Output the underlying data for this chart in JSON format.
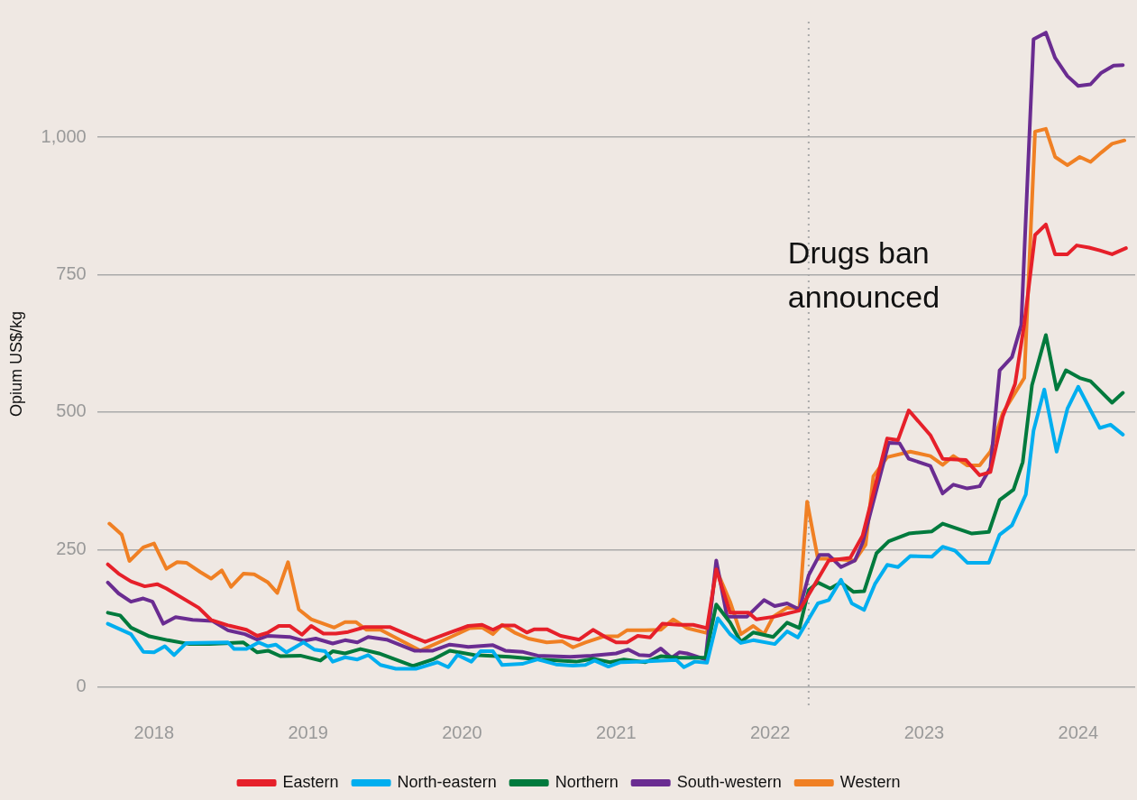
{
  "chart_data": {
    "type": "line",
    "ylabel": "Opium US$/kg",
    "xlim": [
      2017.63,
      2024.37
    ],
    "xticks": [
      2018,
      2019,
      2020,
      2021,
      2022,
      2023,
      2024
    ],
    "ylim": [
      -35,
      1210
    ],
    "yticks": [
      0,
      250,
      500,
      750,
      {
        "value": 1000,
        "label": "1,000"
      }
    ],
    "grid": "y",
    "legend": "bottom",
    "ref_lines": [
      {
        "axis": "x",
        "value": 2022.25,
        "label": "Drugs ban announced",
        "color": "#aaaaaa",
        "line_style": "dotted"
      }
    ],
    "series": [
      {
        "name": "Eastern",
        "color": "#e6202a",
        "x": [
          2017.7,
          2017.77,
          2017.85,
          2017.94,
          2018.02,
          2018.08,
          2018.29,
          2018.37,
          2018.48,
          2018.6,
          2018.67,
          2018.74,
          2018.81,
          2018.88,
          2018.96,
          2019.02,
          2019.1,
          2019.18,
          2019.26,
          2019.37,
          2019.53,
          2019.68,
          2019.76,
          2019.92,
          2020.04,
          2020.13,
          2020.2,
          2020.26,
          2020.34,
          2020.42,
          2020.47,
          2020.55,
          2020.64,
          2020.76,
          2020.85,
          2020.93,
          2021.0,
          2021.07,
          2021.14,
          2021.22,
          2021.3,
          2021.41,
          2021.5,
          2021.59,
          2021.65,
          2021.74,
          2021.86,
          2021.91,
          2022.03,
          2022.19,
          2022.38,
          2022.52,
          2022.6,
          2022.76,
          2022.83,
          2022.9,
          2023.04,
          2023.12,
          2023.27,
          2023.36,
          2023.43,
          2023.51,
          2023.59,
          2023.65,
          2023.72,
          2023.79,
          2023.85,
          2023.93,
          2023.99,
          2024.07,
          2024.14,
          2024.22,
          2024.31
        ],
        "values": [
          223,
          206,
          192,
          183,
          187,
          179,
          144,
          122,
          112,
          104,
          93,
          99,
          111,
          111,
          95,
          111,
          97,
          97,
          100,
          109,
          109,
          91,
          82,
          99,
          111,
          113,
          104,
          112,
          112,
          99,
          105,
          105,
          93,
          86,
          104,
          91,
          81,
          81,
          93,
          90,
          115,
          113,
          113,
          107,
          214,
          135,
          135,
          123,
          128,
          139,
          230,
          235,
          275,
          452,
          449,
          503,
          458,
          415,
          413,
          385,
          391,
          492,
          551,
          660,
          822,
          841,
          787,
          787,
          803,
          799,
          794,
          787,
          798
        ]
      },
      {
        "name": "North-eastern",
        "color": "#00aeef",
        "x": [
          2017.7,
          2017.85,
          2017.93,
          2018.0,
          2018.07,
          2018.13,
          2018.21,
          2018.48,
          2018.52,
          2018.6,
          2018.68,
          2018.74,
          2018.79,
          2018.86,
          2018.97,
          2019.04,
          2019.11,
          2019.16,
          2019.24,
          2019.32,
          2019.39,
          2019.47,
          2019.57,
          2019.7,
          2019.84,
          2019.91,
          2019.97,
          2020.06,
          2020.12,
          2020.2,
          2020.26,
          2020.39,
          2020.49,
          2020.61,
          2020.72,
          2020.8,
          2020.86,
          2020.95,
          2021.03,
          2021.17,
          2021.39,
          2021.44,
          2021.51,
          2021.59,
          2021.66,
          2021.74,
          2021.81,
          2021.89,
          2022.03,
          2022.11,
          2022.18,
          2022.31,
          2022.38,
          2022.46,
          2022.53,
          2022.61,
          2022.68,
          2022.76,
          2022.83,
          2022.91,
          2023.05,
          2023.12,
          2023.2,
          2023.28,
          2023.42,
          2023.49,
          2023.57,
          2023.66,
          2023.71,
          2023.78,
          2023.86,
          2023.93,
          2024.0,
          2024.14,
          2024.21,
          2024.29
        ],
        "values": [
          115,
          96,
          64,
          63,
          74,
          58,
          80,
          81,
          69,
          69,
          81,
          74,
          77,
          63,
          81,
          68,
          65,
          46,
          54,
          50,
          58,
          40,
          33,
          33,
          45,
          36,
          58,
          46,
          65,
          65,
          40,
          42,
          50,
          41,
          39,
          40,
          48,
          37,
          45,
          46,
          49,
          36,
          46,
          44,
          125,
          96,
          80,
          85,
          78,
          101,
          90,
          152,
          158,
          195,
          152,
          140,
          187,
          222,
          218,
          238,
          237,
          255,
          248,
          226,
          226,
          277,
          294,
          350,
          466,
          541,
          428,
          506,
          546,
          471,
          477,
          459
        ]
      },
      {
        "name": "Northern",
        "color": "#007a3d",
        "x": [
          2017.7,
          2017.78,
          2017.85,
          2017.97,
          2018.09,
          2018.23,
          2018.36,
          2018.58,
          2018.67,
          2018.74,
          2018.82,
          2018.95,
          2019.08,
          2019.16,
          2019.24,
          2019.34,
          2019.46,
          2019.68,
          2019.81,
          2019.92,
          2020.08,
          2020.31,
          2020.51,
          2020.74,
          2020.85,
          2020.96,
          2021.05,
          2021.19,
          2021.29,
          2021.41,
          2021.58,
          2021.65,
          2021.74,
          2021.81,
          2021.89,
          2022.02,
          2022.11,
          2022.19,
          2022.25,
          2022.31,
          2022.39,
          2022.46,
          2022.54,
          2022.61,
          2022.69,
          2022.77,
          2022.9,
          2023.05,
          2023.12,
          2023.31,
          2023.42,
          2023.49,
          2023.58,
          2023.64,
          2023.7,
          2023.79,
          2023.86,
          2023.92,
          2024.01,
          2024.08,
          2024.22,
          2024.29
        ],
        "values": [
          135,
          130,
          108,
          92,
          85,
          78,
          78,
          81,
          63,
          66,
          56,
          57,
          48,
          65,
          61,
          69,
          61,
          38,
          50,
          66,
          58,
          55,
          50,
          46,
          51,
          45,
          50,
          45,
          56,
          53,
          53,
          150,
          117,
          82,
          99,
          91,
          117,
          107,
          176,
          190,
          179,
          190,
          173,
          174,
          243,
          265,
          279,
          283,
          297,
          279,
          282,
          340,
          359,
          409,
          549,
          640,
          541,
          576,
          562,
          556,
          517,
          535
        ]
      },
      {
        "name": "South-western",
        "color": "#6a2c91",
        "x": [
          2017.7,
          2017.77,
          2017.85,
          2017.93,
          2017.99,
          2018.06,
          2018.14,
          2018.25,
          2018.38,
          2018.48,
          2018.59,
          2018.67,
          2018.74,
          2018.88,
          2018.97,
          2019.05,
          2019.16,
          2019.24,
          2019.32,
          2019.39,
          2019.51,
          2019.69,
          2019.81,
          2019.92,
          2020.04,
          2020.2,
          2020.28,
          2020.39,
          2020.49,
          2020.7,
          2020.84,
          2021.0,
          2021.08,
          2021.15,
          2021.22,
          2021.29,
          2021.36,
          2021.41,
          2021.46,
          2021.58,
          2021.65,
          2021.72,
          2021.85,
          2021.96,
          2022.03,
          2022.11,
          2022.19,
          2022.25,
          2022.32,
          2022.38,
          2022.46,
          2022.55,
          2022.6,
          2022.77,
          2022.84,
          2022.9,
          2023.04,
          2023.12,
          2023.19,
          2023.28,
          2023.36,
          2023.43,
          2023.49,
          2023.57,
          2023.63,
          2023.71,
          2023.79,
          2023.85,
          2023.93,
          2024.0,
          2024.08,
          2024.15,
          2024.23,
          2024.29
        ],
        "values": [
          190,
          170,
          155,
          161,
          155,
          115,
          127,
          122,
          120,
          103,
          96,
          86,
          93,
          91,
          84,
          88,
          79,
          85,
          81,
          91,
          86,
          66,
          66,
          77,
          73,
          76,
          66,
          64,
          57,
          55,
          57,
          61,
          68,
          58,
          57,
          70,
          53,
          63,
          61,
          50,
          230,
          128,
          128,
          158,
          147,
          152,
          141,
          203,
          240,
          240,
          218,
          230,
          262,
          444,
          443,
          415,
          402,
          352,
          368,
          361,
          365,
          399,
          576,
          600,
          658,
          1178,
          1190,
          1144,
          1111,
          1093,
          1096,
          1117,
          1130,
          1131
        ]
      },
      {
        "name": "Western",
        "color": "#f08024",
        "x": [
          2017.71,
          2017.79,
          2017.84,
          2017.93,
          2018.0,
          2018.08,
          2018.15,
          2018.21,
          2018.3,
          2018.37,
          2018.44,
          2018.5,
          2018.58,
          2018.65,
          2018.74,
          2018.8,
          2018.87,
          2018.94,
          2019.02,
          2019.17,
          2019.24,
          2019.31,
          2019.38,
          2019.47,
          2019.73,
          2019.92,
          2020.05,
          2020.13,
          2020.2,
          2020.26,
          2020.34,
          2020.43,
          2020.55,
          2020.65,
          2020.72,
          2020.8,
          2020.92,
          2021.01,
          2021.07,
          2021.19,
          2021.29,
          2021.37,
          2021.46,
          2021.59,
          2021.65,
          2021.74,
          2021.81,
          2021.89,
          2021.96,
          2022.02,
          2022.11,
          2022.19,
          2022.24,
          2022.31,
          2022.38,
          2022.55,
          2022.62,
          2022.67,
          2022.76,
          2022.91,
          2023.04,
          2023.12,
          2023.19,
          2023.28,
          2023.36,
          2023.43,
          2023.51,
          2023.65,
          2023.72,
          2023.79,
          2023.85,
          2023.93,
          2024.01,
          2024.08,
          2024.15,
          2024.22,
          2024.3
        ],
        "values": [
          297,
          277,
          229,
          254,
          261,
          215,
          227,
          226,
          209,
          197,
          212,
          182,
          206,
          205,
          190,
          171,
          227,
          141,
          123,
          108,
          118,
          118,
          104,
          104,
          66,
          90,
          107,
          108,
          96,
          113,
          99,
          88,
          81,
          83,
          72,
          81,
          92,
          92,
          103,
          103,
          104,
          123,
          107,
          98,
          214,
          155,
          96,
          111,
          96,
          128,
          144,
          144,
          337,
          233,
          233,
          230,
          259,
          383,
          418,
          428,
          420,
          404,
          420,
          403,
          403,
          428,
          498,
          562,
          1010,
          1015,
          964,
          949,
          964,
          955,
          972,
          988,
          994
        ]
      }
    ]
  }
}
